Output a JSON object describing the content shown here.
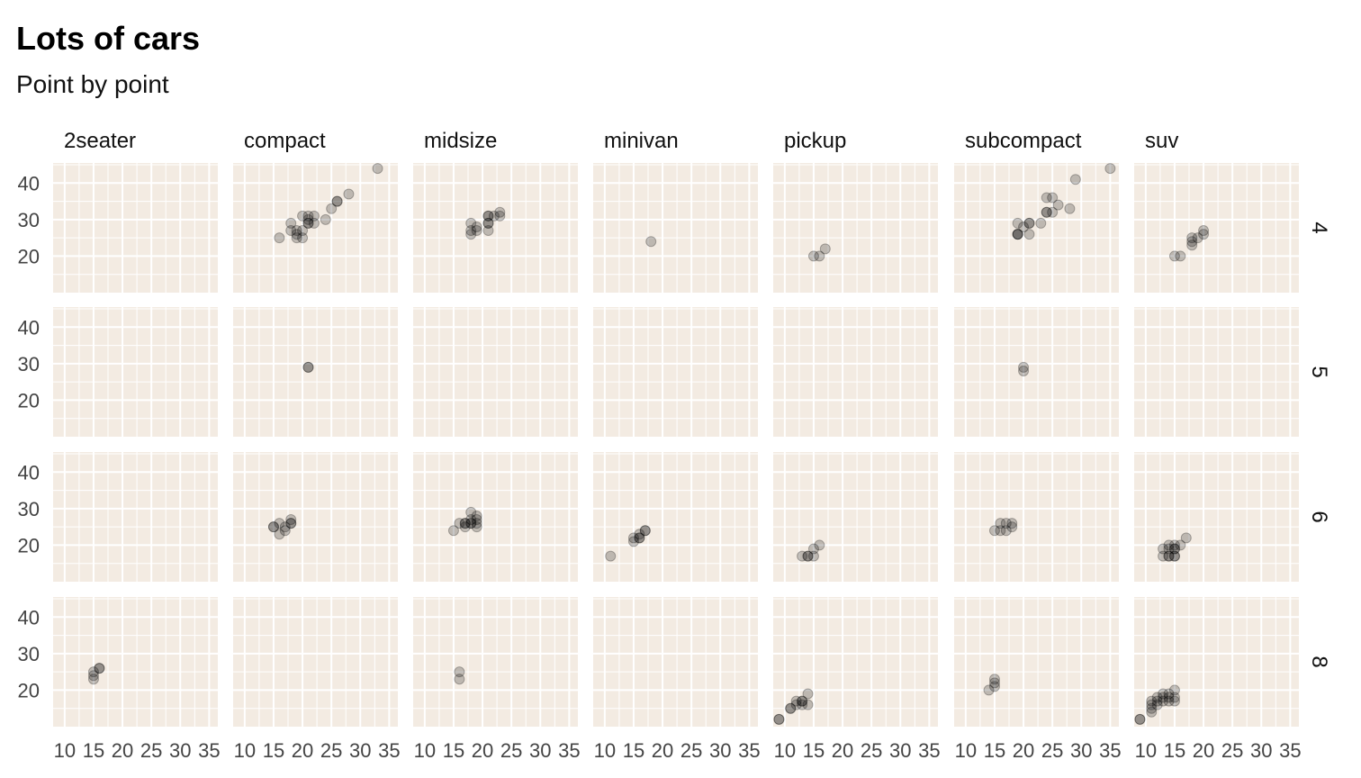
{
  "chart_data": {
    "type": "scatter",
    "title": "Lots of cars",
    "subtitle": "Point by point",
    "xlabel": "",
    "ylabel": "",
    "xlim": [
      8,
      36.5
    ],
    "ylim": [
      10,
      45.5
    ],
    "x_ticks": [
      10,
      15,
      20,
      25,
      30,
      35
    ],
    "y_ticks": [
      20,
      30,
      40
    ],
    "grid": true,
    "point_color": "#000000",
    "point_alpha": 0.22,
    "panel_background": "#f3ebe2",
    "grid_color": "#ffffff",
    "columns": [
      "2seater",
      "compact",
      "midsize",
      "minivan",
      "pickup",
      "subcompact",
      "suv"
    ],
    "rows": [
      "4",
      "5",
      "6",
      "8"
    ],
    "panels": [
      {
        "row": "4",
        "col": "compact",
        "points": [
          [
            16,
            25
          ],
          [
            18,
            29
          ],
          [
            18,
            27
          ],
          [
            19,
            25
          ],
          [
            19,
            26
          ],
          [
            19,
            27
          ],
          [
            20,
            25
          ],
          [
            20,
            27
          ],
          [
            20,
            31
          ],
          [
            21,
            29
          ],
          [
            21,
            29
          ],
          [
            21,
            30
          ],
          [
            21,
            31
          ],
          [
            22,
            29
          ],
          [
            22,
            31
          ],
          [
            24,
            30
          ],
          [
            25,
            33
          ],
          [
            26,
            35
          ],
          [
            26,
            35
          ],
          [
            28,
            37
          ],
          [
            33,
            44
          ]
        ]
      },
      {
        "row": "4",
        "col": "midsize",
        "points": [
          [
            18,
            26
          ],
          [
            18,
            27
          ],
          [
            18,
            29
          ],
          [
            19,
            27
          ],
          [
            19,
            28
          ],
          [
            21,
            27
          ],
          [
            21,
            29
          ],
          [
            21,
            29
          ],
          [
            21,
            31
          ],
          [
            21,
            31
          ],
          [
            22,
            31
          ],
          [
            23,
            31
          ],
          [
            23,
            32
          ]
        ]
      },
      {
        "row": "4",
        "col": "minivan",
        "points": [
          [
            18,
            24
          ]
        ]
      },
      {
        "row": "4",
        "col": "pickup",
        "points": [
          [
            15,
            20
          ],
          [
            16,
            20
          ],
          [
            17,
            22
          ]
        ]
      },
      {
        "row": "4",
        "col": "subcompact",
        "points": [
          [
            19,
            26
          ],
          [
            19,
            26
          ],
          [
            19,
            26
          ],
          [
            19,
            29
          ],
          [
            20,
            28
          ],
          [
            21,
            26
          ],
          [
            21,
            29
          ],
          [
            21,
            29
          ],
          [
            23,
            29
          ],
          [
            24,
            32
          ],
          [
            24,
            32
          ],
          [
            24,
            36
          ],
          [
            25,
            32
          ],
          [
            25,
            36
          ],
          [
            26,
            34
          ],
          [
            28,
            33
          ],
          [
            29,
            41
          ],
          [
            35,
            44
          ]
        ]
      },
      {
        "row": "4",
        "col": "suv",
        "points": [
          [
            15,
            20
          ],
          [
            16,
            20
          ],
          [
            18,
            23
          ],
          [
            18,
            24
          ],
          [
            18,
            25
          ],
          [
            19,
            25
          ],
          [
            20,
            26
          ],
          [
            20,
            27
          ]
        ]
      },
      {
        "row": "5",
        "col": "compact",
        "points": [
          [
            21,
            29
          ],
          [
            21,
            29
          ]
        ]
      },
      {
        "row": "5",
        "col": "subcompact",
        "points": [
          [
            20,
            28
          ],
          [
            20,
            29
          ]
        ]
      },
      {
        "row": "6",
        "col": "compact",
        "points": [
          [
            15,
            25
          ],
          [
            15,
            25
          ],
          [
            16,
            23
          ],
          [
            16,
            26
          ],
          [
            17,
            24
          ],
          [
            17,
            25
          ],
          [
            18,
            26
          ],
          [
            18,
            26
          ],
          [
            18,
            27
          ]
        ]
      },
      {
        "row": "6",
        "col": "midsize",
        "points": [
          [
            15,
            24
          ],
          [
            16,
            26
          ],
          [
            17,
            25
          ],
          [
            17,
            26
          ],
          [
            17,
            26
          ],
          [
            18,
            26
          ],
          [
            18,
            26
          ],
          [
            18,
            27
          ],
          [
            18,
            29
          ],
          [
            19,
            25
          ],
          [
            19,
            26
          ],
          [
            19,
            27
          ],
          [
            19,
            28
          ]
        ]
      },
      {
        "row": "6",
        "col": "minivan",
        "points": [
          [
            11,
            17
          ],
          [
            15,
            21
          ],
          [
            15,
            22
          ],
          [
            16,
            22
          ],
          [
            16,
            22
          ],
          [
            16,
            23
          ],
          [
            17,
            24
          ],
          [
            17,
            24
          ]
        ]
      },
      {
        "row": "6",
        "col": "pickup",
        "points": [
          [
            13,
            17
          ],
          [
            14,
            17
          ],
          [
            14,
            17
          ],
          [
            15,
            17
          ],
          [
            15,
            19
          ],
          [
            16,
            20
          ]
        ]
      },
      {
        "row": "6",
        "col": "subcompact",
        "points": [
          [
            15,
            24
          ],
          [
            16,
            24
          ],
          [
            16,
            26
          ],
          [
            17,
            24
          ],
          [
            17,
            26
          ],
          [
            18,
            25
          ],
          [
            18,
            26
          ]
        ]
      },
      {
        "row": "6",
        "col": "suv",
        "points": [
          [
            13,
            17
          ],
          [
            13,
            19
          ],
          [
            14,
            19
          ],
          [
            14,
            20
          ],
          [
            14,
            17
          ],
          [
            14,
            17
          ],
          [
            15,
            17
          ],
          [
            15,
            19
          ],
          [
            15,
            20
          ],
          [
            15,
            17
          ],
          [
            15,
            19
          ],
          [
            16,
            20
          ],
          [
            17,
            22
          ]
        ]
      },
      {
        "row": "8",
        "col": "2seater",
        "points": [
          [
            15,
            23
          ],
          [
            15,
            24
          ],
          [
            15,
            25
          ],
          [
            16,
            26
          ],
          [
            16,
            26
          ]
        ]
      },
      {
        "row": "8",
        "col": "midsize",
        "points": [
          [
            16,
            23
          ],
          [
            16,
            25
          ]
        ]
      },
      {
        "row": "8",
        "col": "pickup",
        "points": [
          [
            9,
            12
          ],
          [
            9,
            12
          ],
          [
            11,
            15
          ],
          [
            11,
            15
          ],
          [
            12,
            16
          ],
          [
            12,
            17
          ],
          [
            13,
            16
          ],
          [
            13,
            17
          ],
          [
            13,
            17
          ],
          [
            14,
            16
          ],
          [
            14,
            19
          ]
        ]
      },
      {
        "row": "8",
        "col": "subcompact",
        "points": [
          [
            14,
            20
          ],
          [
            15,
            21
          ],
          [
            15,
            22
          ],
          [
            15,
            23
          ]
        ]
      },
      {
        "row": "8",
        "col": "suv",
        "points": [
          [
            9,
            12
          ],
          [
            9,
            12
          ],
          [
            11,
            14
          ],
          [
            11,
            15
          ],
          [
            11,
            16
          ],
          [
            11,
            17
          ],
          [
            12,
            16
          ],
          [
            12,
            17
          ],
          [
            12,
            18
          ],
          [
            13,
            17
          ],
          [
            13,
            18
          ],
          [
            13,
            19
          ],
          [
            14,
            17
          ],
          [
            14,
            18
          ],
          [
            14,
            19
          ],
          [
            15,
            17
          ],
          [
            15,
            18
          ],
          [
            15,
            20
          ]
        ]
      }
    ]
  }
}
